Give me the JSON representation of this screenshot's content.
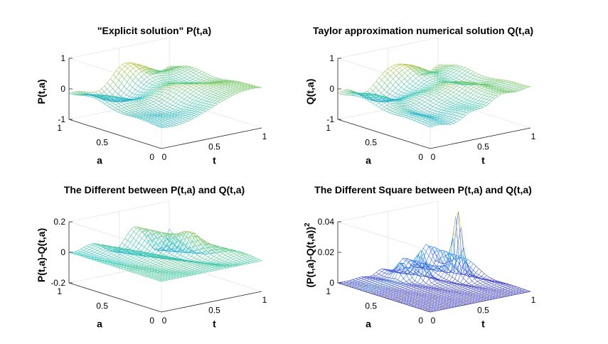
{
  "chart_data": [
    {
      "type": "surface",
      "title": "\"Explicit solution\" P(t,a)",
      "xlabel": "t",
      "ylabel": "a",
      "zlabel": "P(t,a)",
      "xlim": [
        0,
        1
      ],
      "ylim": [
        0,
        1
      ],
      "zlim": [
        -1,
        1
      ],
      "xticks": [
        "0",
        "0.5",
        "1"
      ],
      "yticks": [
        "0",
        "0.5",
        "1"
      ],
      "zticks": [
        "-1",
        "0",
        "1"
      ],
      "colormap": [
        "#3e26a8",
        "#2e6efc",
        "#18a9e1",
        "#2cc9b1",
        "#a6c53a",
        "#f5bd30",
        "#f9fb0e"
      ]
    },
    {
      "type": "surface",
      "title": "Taylor approximation numerical solution Q(t,a)",
      "xlabel": "t",
      "ylabel": "a",
      "zlabel": "Q(t,a)",
      "xlim": [
        0,
        1
      ],
      "ylim": [
        0,
        1
      ],
      "zlim": [
        -1,
        1
      ],
      "xticks": [
        "0",
        "0.5",
        "1"
      ],
      "yticks": [
        "0",
        "0.5",
        "1"
      ],
      "zticks": [
        "-1",
        "0",
        "1"
      ],
      "colormap": [
        "#3e26a8",
        "#2e6efc",
        "#18a9e1",
        "#2cc9b1",
        "#a6c53a",
        "#f5bd30",
        "#f9fb0e"
      ]
    },
    {
      "type": "surface",
      "title": "The Different between P(t,a) and Q(t,a)",
      "xlabel": "t",
      "ylabel": "a",
      "zlabel": "P(t,a)-Q(t,a)",
      "xlim": [
        0,
        1
      ],
      "ylim": [
        0,
        1
      ],
      "zlim": [
        -0.2,
        0.2
      ],
      "xticks": [
        "0",
        "0.5",
        "1"
      ],
      "yticks": [
        "0",
        "0.5",
        "1"
      ],
      "zticks": [
        "-0.2",
        "0",
        "0.2"
      ],
      "colormap": [
        "#3e26a8",
        "#2e6efc",
        "#18a9e1",
        "#2cc9b1",
        "#a6c53a",
        "#f5bd30",
        "#f9fb0e"
      ]
    },
    {
      "type": "surface",
      "title": "The Different Square between P(t,a) and Q(t,a)",
      "xlabel": "t",
      "ylabel": "a",
      "zlabel": "(P(t,a)-Q(t,a))",
      "zlabel_superscript": "2",
      "xlim": [
        0,
        1
      ],
      "ylim": [
        0,
        1
      ],
      "zlim": [
        0,
        0.04
      ],
      "xticks": [
        "0",
        "0.5",
        "1"
      ],
      "yticks": [
        "0",
        "0.5",
        "1"
      ],
      "zticks": [
        "0",
        "0.02",
        "0.04"
      ],
      "colormap": [
        "#3e26a8",
        "#2e6efc",
        "#18a9e1",
        "#2cc9b1",
        "#a6c53a",
        "#f5bd30",
        "#f9fb0e"
      ]
    }
  ]
}
